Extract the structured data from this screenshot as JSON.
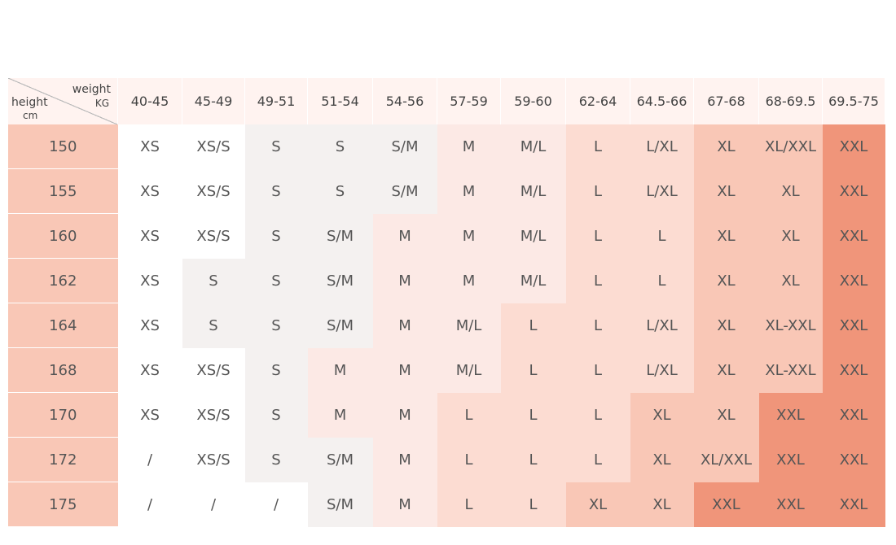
{
  "corner": {
    "weight": "weight",
    "kg": "KG",
    "height": "height",
    "cm": "cm"
  },
  "weight_ranges": [
    "40-45",
    "45-49",
    "49-51",
    "51-54",
    "54-56",
    "57-59",
    "59-60",
    "62-64",
    "64.5-66",
    "67-68",
    "68-69.5",
    "69.5-75"
  ],
  "rows": [
    {
      "height": "150",
      "sizes": [
        "XS",
        "XS/S",
        "S",
        "S",
        "S/M",
        "M",
        "M/L",
        "L",
        "L/XL",
        "XL",
        "XL/XXL",
        "XXL"
      ]
    },
    {
      "height": "155",
      "sizes": [
        "XS",
        "XS/S",
        "S",
        "S",
        "S/M",
        "M",
        "M/L",
        "L",
        "L/XL",
        "XL",
        "XL",
        "XXL"
      ]
    },
    {
      "height": "160",
      "sizes": [
        "XS",
        "XS/S",
        "S",
        "S/M",
        "M",
        "M",
        "M/L",
        "L",
        "L",
        "XL",
        "XL",
        "XXL"
      ]
    },
    {
      "height": "162",
      "sizes": [
        "XS",
        "S",
        "S",
        "S/M",
        "M",
        "M",
        "M/L",
        "L",
        "L",
        "XL",
        "XL",
        "XXL"
      ]
    },
    {
      "height": "164",
      "sizes": [
        "XS",
        "S",
        "S",
        "S/M",
        "M",
        "M/L",
        "L",
        "L",
        "L/XL",
        "XL",
        "XL-XXL",
        "XXL"
      ]
    },
    {
      "height": "168",
      "sizes": [
        "XS",
        "XS/S",
        "S",
        "M",
        "M",
        "M/L",
        "L",
        "L",
        "L/XL",
        "XL",
        "XL-XXL",
        "XXL"
      ]
    },
    {
      "height": "170",
      "sizes": [
        "XS",
        "XS/S",
        "S",
        "M",
        "M",
        "L",
        "L",
        "L",
        "XL",
        "XL",
        "XXL",
        "XXL"
      ]
    },
    {
      "height": "172",
      "sizes": [
        "/",
        "XS/S",
        "S",
        "S/M",
        "M",
        "L",
        "L",
        "L",
        "XL",
        "XL/XXL",
        "XXL",
        "XXL"
      ]
    },
    {
      "height": "175",
      "sizes": [
        "/",
        "/",
        "/",
        "S/M",
        "M",
        "L",
        "L",
        "XL",
        "XL",
        "XXL",
        "XXL",
        "XXL"
      ]
    }
  ],
  "size_colors": {
    "XS": "#ffffff",
    "XS/S": "#ffffff",
    "/": "#ffffff",
    "S": "#f4f1f0",
    "S/M": "#f4f1f0",
    "M": "#fce9e5",
    "M/L": "#fce9e5",
    "L": "#fcdcd2",
    "L/XL": "#fcdcd2",
    "XL": "#f9c7b6",
    "XL/XXL": "#f9c7b6",
    "XL-XXL": "#f9c7b6",
    "XXL": "#f0957a"
  },
  "header_bg": "#fff3f0",
  "height_col_bg": "#f9c7b6"
}
